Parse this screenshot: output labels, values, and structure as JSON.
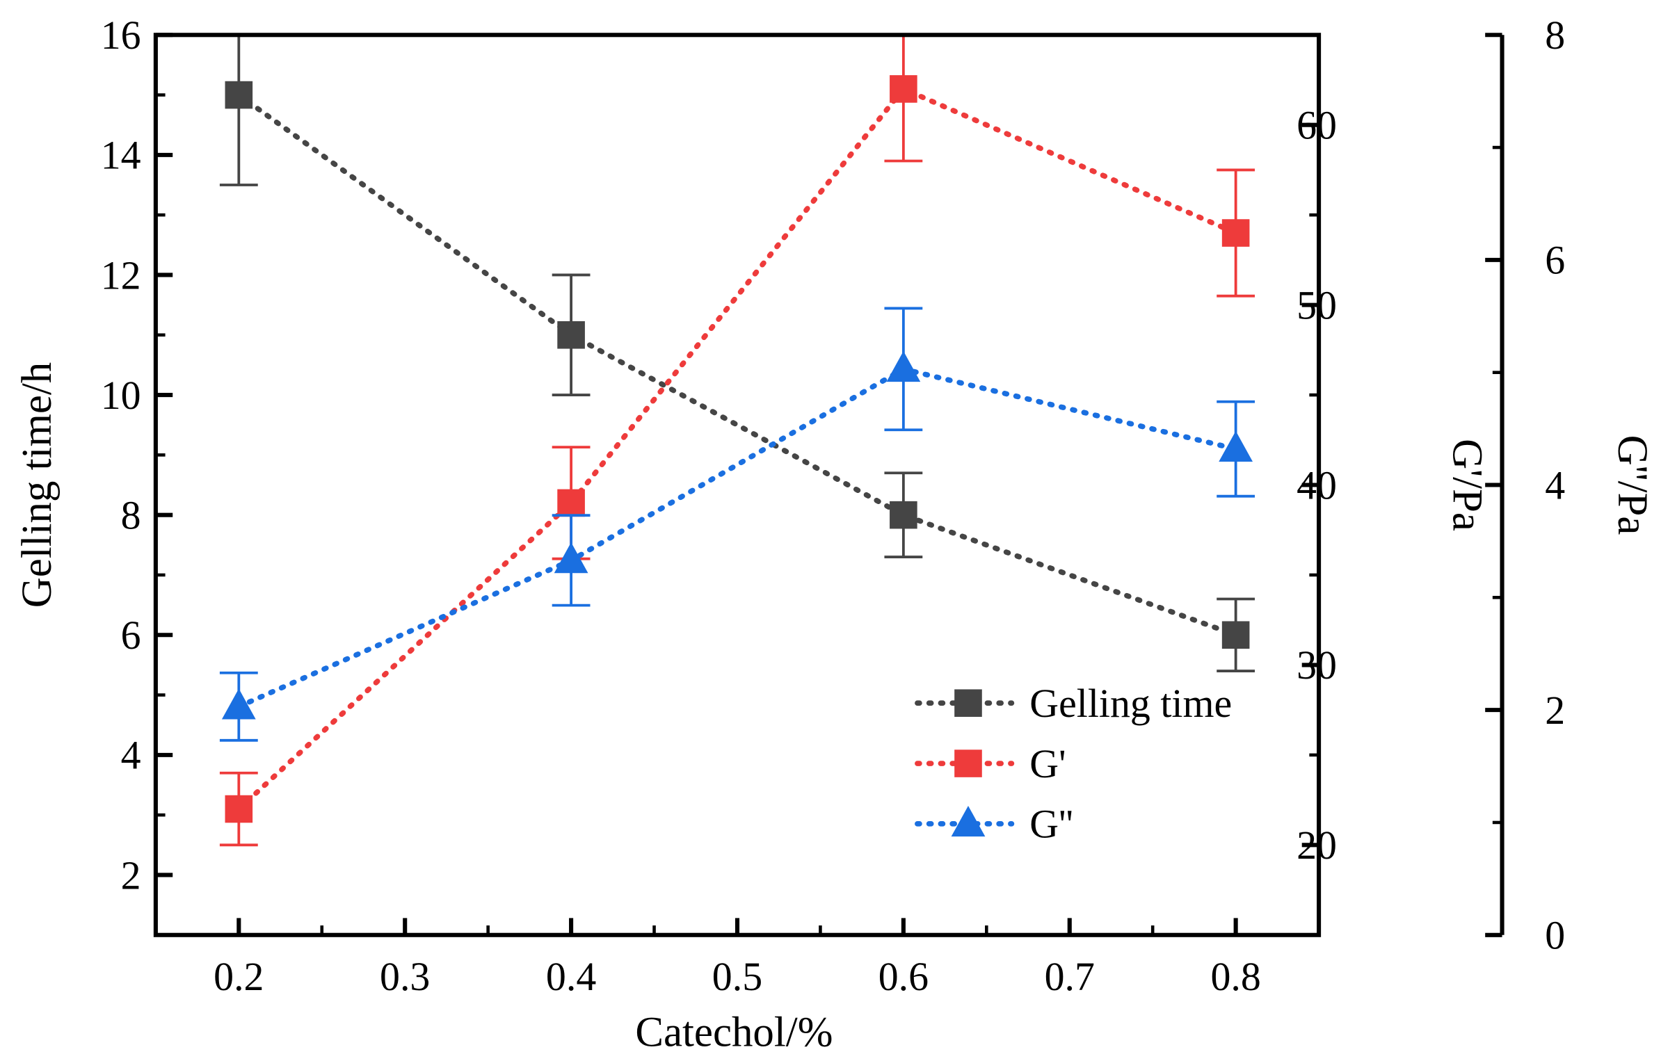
{
  "chart_data": {
    "type": "line",
    "title": "",
    "xlabel": "Catechol/%",
    "xlim": [
      0.15,
      0.85
    ],
    "xticks": [
      "0.2",
      "0.3",
      "0.4",
      "0.5",
      "0.6",
      "0.7",
      "0.8"
    ],
    "axes": [
      {
        "id": "left",
        "label": "Gelling time/h",
        "ylim": [
          1,
          16
        ],
        "ticks": [
          "2",
          "4",
          "6",
          "8",
          "10",
          "12",
          "14",
          "16"
        ]
      },
      {
        "id": "right1",
        "label": "G'/Pa",
        "ylim": [
          15,
          65
        ],
        "ticks": [
          "20",
          "30",
          "40",
          "50",
          "60"
        ]
      },
      {
        "id": "right2",
        "label": "G''/Pa",
        "ylim": [
          0,
          8
        ],
        "ticks": [
          "0",
          "2",
          "4",
          "6",
          "8"
        ]
      }
    ],
    "x": [
      0.2,
      0.4,
      0.6,
      0.8
    ],
    "series": [
      {
        "name": "Gelling time",
        "axis": "left",
        "color": "#454545",
        "marker": "square",
        "values": [
          15,
          11,
          8,
          6
        ],
        "errors": [
          1.5,
          1,
          0.7,
          0.6
        ]
      },
      {
        "name": "G'",
        "axis": "right1",
        "color": "#ee3b3b",
        "marker": "square",
        "values": [
          22,
          39,
          62,
          54
        ],
        "errors": [
          2,
          3.1,
          4,
          3.5
        ]
      },
      {
        "name": "G''",
        "axis": "right2",
        "color": "#1a6fe0",
        "marker": "triangle",
        "values": [
          2.03,
          3.33,
          5.03,
          4.32
        ],
        "errors": [
          0.3,
          0.4,
          0.54,
          0.42
        ]
      }
    ],
    "legend": "bottom-right",
    "grid": false
  }
}
